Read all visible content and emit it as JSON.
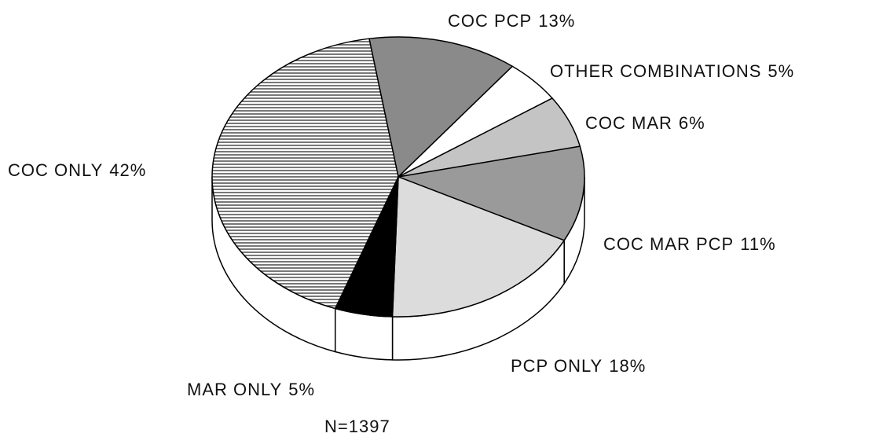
{
  "chart_data": {
    "type": "pie",
    "categories": [
      "COC PCP",
      "OTHER COMBINATIONS",
      "COC MAR",
      "COC MAR PCP",
      "PCP ONLY",
      "MAR ONLY",
      "COC ONLY"
    ],
    "values": [
      13,
      5,
      6,
      11,
      18,
      5,
      42
    ],
    "value_labels": [
      "13%",
      "5%",
      "6%",
      "11%",
      "18%",
      "5%",
      "42%"
    ],
    "colors": [
      "#8a8a8a",
      "#ffffff",
      "#c4c4c4",
      "#9a9a9a",
      "#dcdcdc",
      "#000000",
      "#b0b0b0"
    ],
    "annotation": "N=1397"
  }
}
